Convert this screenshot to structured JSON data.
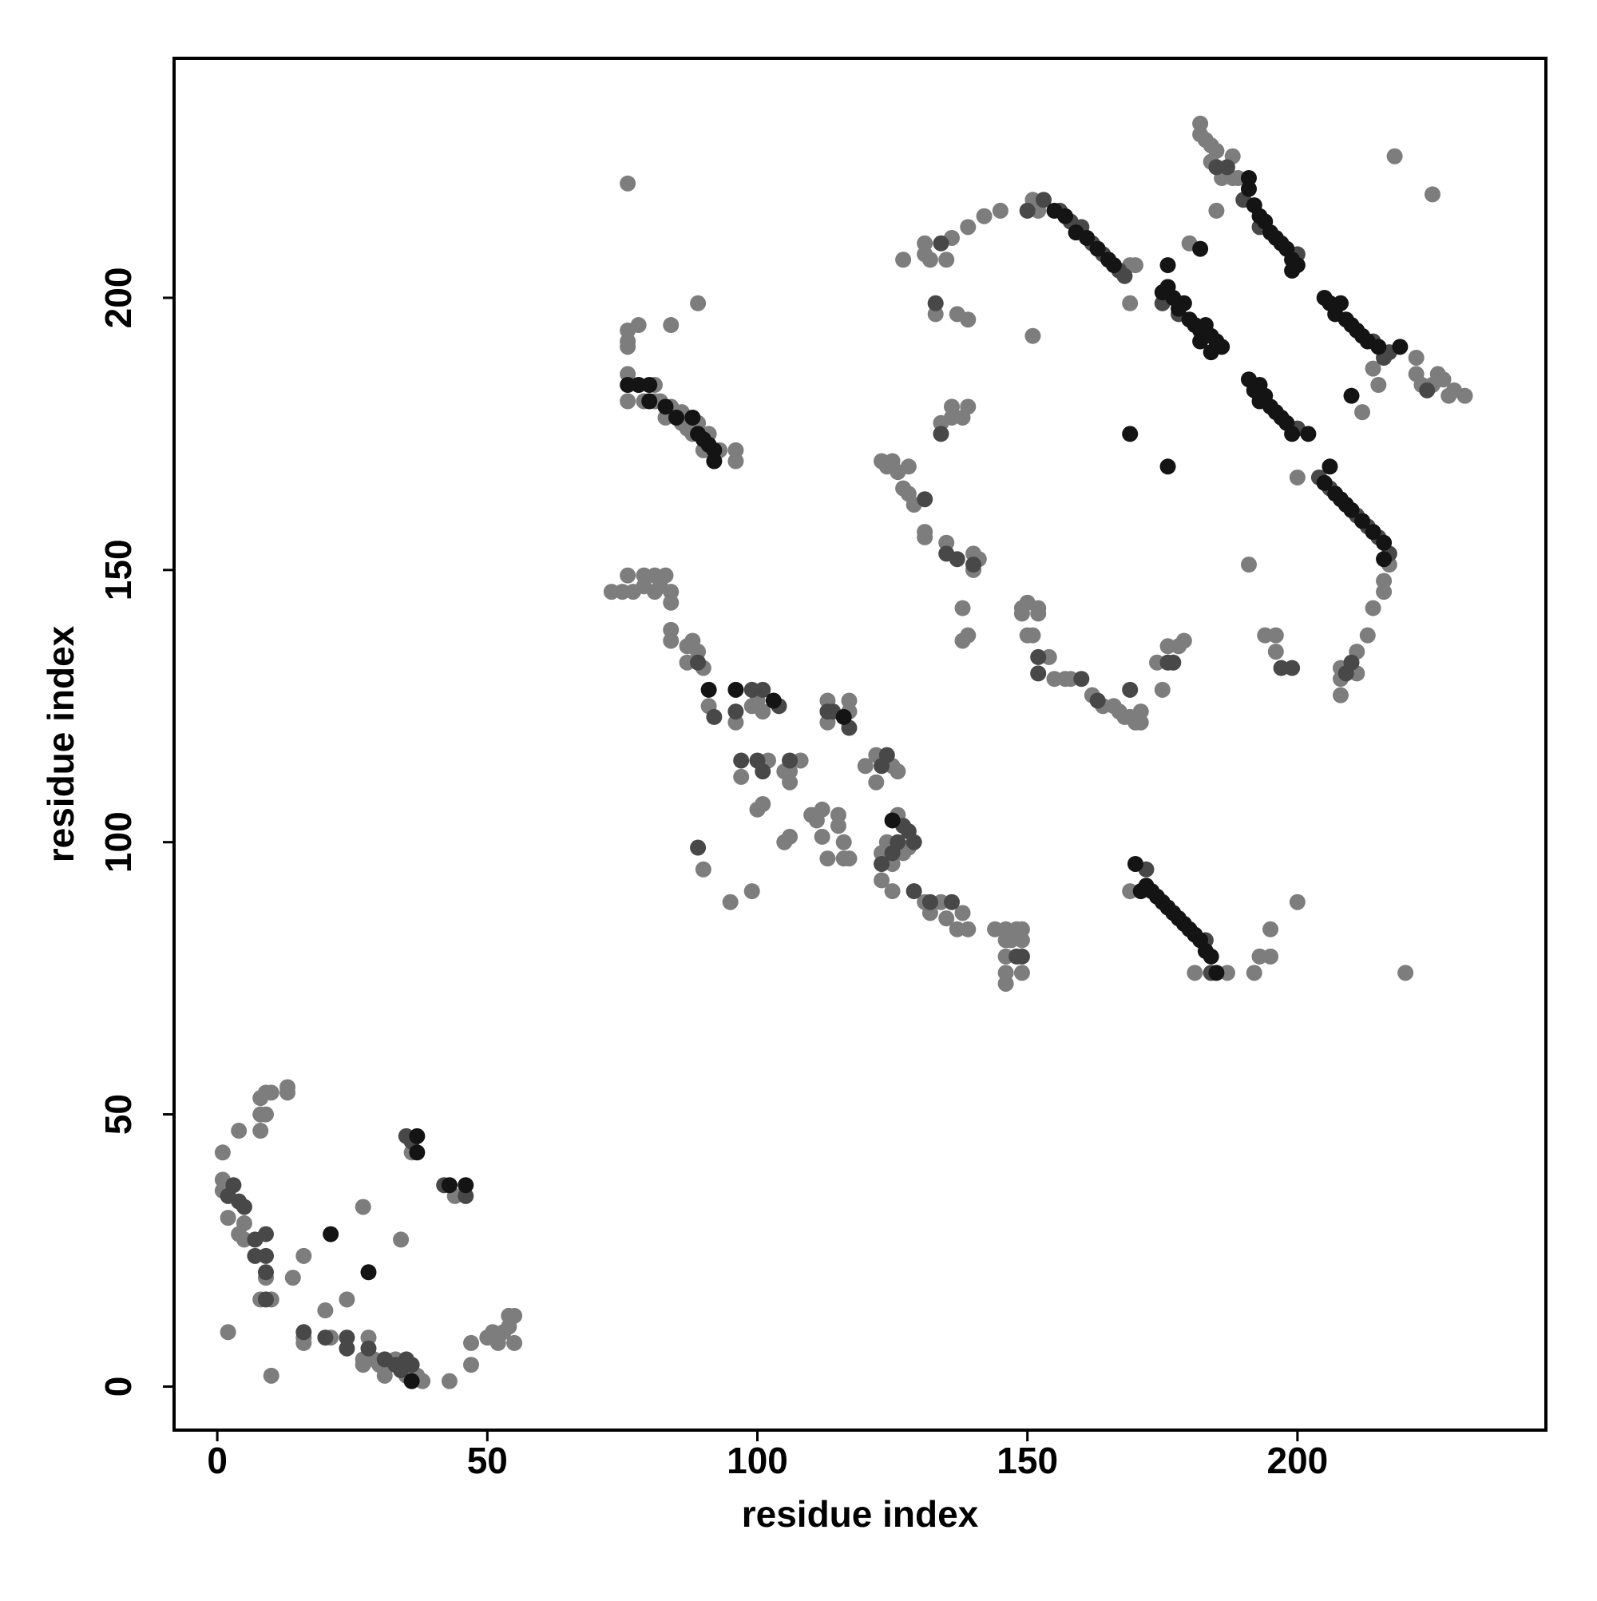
{
  "chart_data": {
    "type": "scatter",
    "xlabel": "residue index",
    "ylabel": "residue index",
    "xlim": [
      -8,
      246
    ],
    "ylim": [
      -8,
      244
    ],
    "xticks": [
      0,
      50,
      100,
      150,
      200
    ],
    "yticks": [
      0,
      50,
      100,
      150,
      200
    ],
    "grid": false,
    "series": [
      {
        "color": "#7d7d7d",
        "x": [
          1,
          1,
          1,
          2,
          5,
          4,
          5,
          9,
          8,
          10,
          4,
          8,
          8,
          9,
          8,
          9,
          10,
          13,
          13,
          2,
          10,
          14,
          16,
          16,
          16,
          20,
          21,
          24,
          27,
          27,
          27,
          28,
          29,
          30,
          31,
          32,
          33,
          34,
          35,
          37,
          38,
          43,
          36,
          44,
          47,
          47,
          50,
          51,
          52,
          53,
          54,
          54,
          55,
          55,
          73,
          75,
          76,
          77,
          79,
          79,
          81,
          81,
          82,
          83,
          84,
          84,
          84,
          84,
          87,
          87,
          88,
          89,
          90,
          91,
          90,
          95,
          96,
          97,
          99,
          99,
          100,
          100,
          101,
          101,
          102,
          105,
          105,
          106,
          106,
          106,
          108,
          110,
          111,
          112,
          112,
          113,
          113,
          113,
          115,
          115,
          116,
          116,
          117,
          117,
          117,
          120,
          122,
          122,
          123,
          123,
          124,
          125,
          125,
          125,
          126,
          126,
          127,
          128,
          131,
          132,
          134,
          135,
          137,
          138,
          139,
          144,
          146,
          146,
          146,
          146,
          146,
          147,
          148,
          149,
          149,
          149,
          76,
          76,
          76,
          76,
          76,
          79,
          81,
          81,
          82,
          83,
          84,
          86,
          86,
          87,
          87,
          88,
          89,
          90,
          91,
          93,
          96,
          96,
          76,
          78,
          84,
          89,
          123,
          124,
          125,
          126,
          127,
          128,
          128,
          129,
          127,
          131,
          131,
          131,
          131,
          132,
          133,
          134,
          135,
          135,
          136,
          136,
          136,
          137,
          138,
          138,
          138,
          139,
          139,
          139,
          139,
          140,
          140,
          141,
          142,
          145,
          149,
          149,
          150,
          150,
          151,
          151,
          152,
          152,
          154,
          155,
          157,
          158,
          162,
          164,
          166,
          167,
          168,
          169,
          170,
          171,
          171,
          174,
          175,
          176,
          178,
          179,
          151,
          152,
          169,
          169,
          170,
          180,
          182,
          182,
          183,
          184,
          184,
          185,
          186,
          188,
          188,
          189,
          185,
          212,
          214,
          215,
          222,
          222,
          223,
          225,
          226,
          227,
          228,
          229,
          231,
          218,
          225,
          220,
          200,
          191,
          216,
          216,
          214,
          213,
          211,
          211,
          208,
          208,
          208,
          194,
          196,
          196,
          217,
          169,
          181,
          187,
          192,
          193,
          195,
          195,
          200
        ],
        "values": [
          43,
          38,
          36,
          31,
          30,
          28,
          27,
          20,
          16,
          16,
          47,
          47,
          50,
          50,
          53,
          54,
          54,
          54,
          55,
          10,
          2,
          20,
          24,
          9,
          8,
          14,
          9,
          16,
          33,
          5,
          4,
          9,
          5,
          4,
          2,
          4,
          5,
          27,
          2,
          2,
          1,
          1,
          43,
          35,
          4,
          8,
          9,
          10,
          8,
          10,
          11,
          13,
          8,
          13,
          146,
          146,
          149,
          146,
          149,
          147,
          149,
          146,
          147,
          149,
          146,
          144,
          139,
          137,
          136,
          133,
          137,
          135,
          132,
          125,
          95,
          89,
          122,
          112,
          125,
          91,
          126,
          106,
          124,
          107,
          115,
          113,
          100,
          113,
          111,
          101,
          115,
          105,
          104,
          106,
          101,
          126,
          122,
          97,
          105,
          103,
          100,
          97,
          126,
          124,
          97,
          114,
          116,
          111,
          98,
          93,
          100,
          114,
          96,
          91,
          113,
          105,
          98,
          99,
          89,
          87,
          89,
          86,
          84,
          87,
          84,
          84,
          84,
          82,
          79,
          76,
          74,
          82,
          84,
          84,
          82,
          76,
          194,
          192,
          191,
          186,
          181,
          181,
          184,
          181,
          181,
          178,
          180,
          177,
          179,
          178,
          176,
          175,
          177,
          172,
          175,
          172,
          172,
          170,
          221,
          195,
          195,
          199,
          170,
          169,
          170,
          168,
          165,
          164,
          169,
          162,
          207,
          157,
          156,
          208,
          210,
          207,
          197,
          177,
          207,
          155,
          178,
          180,
          211,
          197,
          178,
          143,
          137,
          180,
          138,
          196,
          213,
          153,
          150,
          152,
          215,
          216,
          142,
          143,
          138,
          144,
          138,
          193,
          142,
          143,
          134,
          130,
          130,
          130,
          127,
          125,
          125,
          124,
          123,
          123,
          122,
          122,
          124,
          133,
          128,
          136,
          136,
          137,
          218,
          216,
          206,
          199,
          206,
          210,
          232,
          230,
          229,
          228,
          225,
          227,
          222,
          226,
          222,
          222,
          216,
          179,
          187,
          184,
          186,
          189,
          184,
          184,
          186,
          185,
          182,
          183,
          182,
          226,
          219,
          76,
          167,
          151,
          146,
          148,
          143,
          138,
          135,
          131,
          132,
          127,
          130,
          138,
          138,
          135,
          151,
          91,
          76,
          76,
          76,
          79,
          79,
          84,
          89
        ]
      },
      {
        "color": "#484848",
        "x": [
          2,
          3,
          5,
          4,
          7,
          7,
          9,
          9,
          9,
          9,
          16,
          20,
          24,
          24,
          28,
          31,
          33,
          34,
          35,
          36,
          35,
          36,
          42,
          46,
          89,
          92,
          96,
          97,
          99,
          100,
          101,
          104,
          106,
          113,
          114,
          117,
          123,
          124,
          123,
          125,
          126,
          127,
          128,
          129,
          129,
          132,
          136,
          148,
          149,
          131,
          133,
          134,
          134,
          135,
          137,
          140,
          152,
          152,
          160,
          163,
          169,
          176,
          177,
          150,
          153,
          156,
          158,
          160,
          162,
          164,
          167,
          168,
          175,
          178,
          185,
          187,
          190,
          193,
          200,
          214,
          216,
          217,
          200,
          204,
          206,
          211,
          213,
          215,
          217,
          210,
          209,
          197,
          199,
          172,
          183,
          184,
          224,
          89,
          101
        ],
        "values": [
          35,
          37,
          33,
          34,
          27,
          24,
          28,
          24,
          21,
          16,
          10,
          9,
          9,
          7,
          7,
          5,
          4,
          3,
          5,
          4,
          46,
          45,
          37,
          35,
          133,
          123,
          124,
          115,
          128,
          115,
          128,
          125,
          115,
          124,
          124,
          121,
          114,
          116,
          96,
          98,
          100,
          103,
          102,
          100,
          91,
          89,
          89,
          79,
          79,
          163,
          199,
          175,
          210,
          153,
          152,
          151,
          134,
          131,
          130,
          126,
          128,
          133,
          133,
          216,
          218,
          216,
          214,
          213,
          210,
          208,
          205,
          204,
          199,
          197,
          224,
          224,
          218,
          213,
          208,
          192,
          189,
          190,
          176,
          167,
          165,
          160,
          158,
          156,
          153,
          133,
          131,
          132,
          132,
          95,
          82,
          76,
          183,
          99,
          113
        ]
      },
      {
        "color": "#141414",
        "x": [
          76,
          78,
          80,
          80,
          83,
          85,
          88,
          89,
          90,
          91,
          92,
          92,
          155,
          157,
          159,
          161,
          163,
          165,
          166,
          176,
          182,
          202,
          210,
          169,
          175,
          176,
          177,
          178,
          179,
          180,
          181,
          182,
          182,
          183,
          184,
          184,
          185,
          186,
          191,
          191,
          192,
          193,
          194,
          195,
          196,
          197,
          198,
          199,
          199,
          200,
          205,
          206,
          207,
          208,
          209,
          210,
          211,
          212,
          213,
          215,
          219,
          191,
          192,
          193,
          193,
          194,
          195,
          196,
          197,
          198,
          199,
          205,
          206,
          207,
          208,
          209,
          210,
          212,
          214,
          216,
          216,
          170,
          171,
          172,
          173,
          174,
          175,
          176,
          177,
          178,
          179,
          180,
          181,
          182,
          183,
          184,
          185,
          37,
          37,
          43,
          46,
          21,
          28,
          36,
          96,
          103,
          116,
          125,
          91,
          176
        ],
        "values": [
          184,
          184,
          184,
          181,
          180,
          178,
          178,
          175,
          174,
          173,
          172,
          170,
          216,
          215,
          212,
          211,
          209,
          207,
          206,
          206,
          209,
          175,
          182,
          175,
          201,
          202,
          200,
          198,
          199,
          196,
          195,
          194,
          192,
          195,
          193,
          190,
          192,
          191,
          222,
          220,
          217,
          215,
          214,
          212,
          211,
          210,
          209,
          207,
          205,
          206,
          200,
          199,
          197,
          199,
          196,
          195,
          194,
          193,
          192,
          191,
          191,
          185,
          183,
          184,
          181,
          182,
          180,
          179,
          178,
          177,
          175,
          166,
          169,
          164,
          163,
          162,
          161,
          159,
          157,
          155,
          152,
          96,
          91,
          92,
          91,
          90,
          89,
          88,
          87,
          86,
          85,
          84,
          83,
          82,
          80,
          79,
          76,
          46,
          43,
          37,
          37,
          28,
          21,
          1,
          128,
          126,
          123,
          104,
          128,
          169
        ]
      }
    ]
  }
}
